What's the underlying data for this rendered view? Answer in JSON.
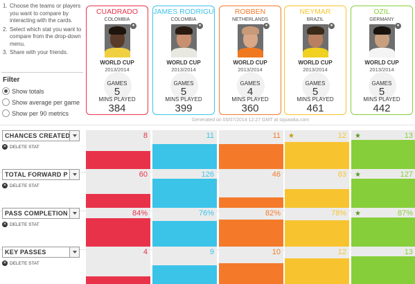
{
  "instructions": [
    {
      "num": "1.",
      "text": "Choose the teams or players you want to compare by interacting with the cards."
    },
    {
      "num": "2.",
      "text": "Select which stat you want to compare from the drop-down menu."
    },
    {
      "num": "3.",
      "text": "Share with your friends."
    }
  ],
  "filter": {
    "title": "Filter",
    "options": [
      {
        "label": "Show totals",
        "checked": true
      },
      {
        "label": "Show average per game",
        "checked": false
      },
      {
        "label": "Show per 90 metrics",
        "checked": false
      }
    ]
  },
  "players": [
    {
      "name": "CUADRADO",
      "country": "COLOMBIA",
      "tournament": "WORLD CUP",
      "season": "2013/2014",
      "games_label": "GAMES",
      "games": "5",
      "mins_label": "MINS PLAYED",
      "mins": "384",
      "color": "#e8324a",
      "skin": "#5a3a28",
      "hair": "#1e140e",
      "shirt": "#f0d040"
    },
    {
      "name": "JAMES RODRIGU",
      "country": "COLOMBIA",
      "tournament": "WORLD CUP",
      "season": "2013/2014",
      "games_label": "GAMES",
      "games": "5",
      "mins_label": "MINS PLAYED",
      "mins": "399",
      "color": "#3cc3e8",
      "skin": "#c89070",
      "hair": "#2a1a12",
      "shirt": "#e8e8e0"
    },
    {
      "name": "ROBBEN",
      "country": "NETHERLANDS",
      "tournament": "WORLD CUP",
      "season": "2013/2014",
      "games_label": "GAMES",
      "games": "4",
      "mins_label": "MINS PLAYED",
      "mins": "360",
      "color": "#f47a2a",
      "skin": "#d8a888",
      "hair": "#c89a78",
      "shirt": "#f07820"
    },
    {
      "name": "NEYMAR",
      "country": "BRAZIL",
      "tournament": "WORLD CUP",
      "season": "2013/2014",
      "games_label": "GAMES",
      "games": "5",
      "mins_label": "MINS PLAYED",
      "mins": "461",
      "color": "#f7c430",
      "skin": "#b88060",
      "hair": "#3a2a1a",
      "shirt": "#f0d020"
    },
    {
      "name": "OZIL",
      "country": "GERMANY",
      "tournament": "WORLD CUP",
      "season": "2013/2014",
      "games_label": "GAMES",
      "games": "5",
      "mins_label": "MINS PLAYED",
      "mins": "442",
      "color": "#86cf3a",
      "skin": "#c8a080",
      "hair": "#1a120c",
      "shirt": "#f4f4f4"
    }
  ],
  "generated": "Generated on 05/07/2014 12:27 GMT at squawka.com",
  "delete_label": "DELETE STAT",
  "stats": [
    {
      "label": "CHANCES CREATED",
      "values": [
        "8",
        "11",
        "11",
        "12",
        "13"
      ],
      "levels": [
        0.62,
        0.85,
        0.85,
        0.92,
        1.0
      ],
      "stars": [
        false,
        false,
        false,
        true,
        true
      ]
    },
    {
      "label": "TOTAL FORWARD P",
      "values": [
        "60",
        "126",
        "46",
        "83",
        "127"
      ],
      "levels": [
        0.47,
        0.99,
        0.36,
        0.65,
        1.0
      ],
      "stars": [
        false,
        false,
        false,
        false,
        true
      ]
    },
    {
      "label": "PASS COMPLETION",
      "values": [
        "84%",
        "76%",
        "82%",
        "78%",
        "87%"
      ],
      "levels": [
        0.97,
        0.87,
        0.94,
        0.9,
        1.0
      ],
      "stars": [
        false,
        false,
        false,
        false,
        true
      ]
    },
    {
      "label": "KEY PASSES",
      "values": [
        "4",
        "9",
        "10",
        "12",
        "13"
      ],
      "levels": [
        0.31,
        0.69,
        0.77,
        0.92,
        1.0
      ],
      "stars": [
        false,
        false,
        false,
        false,
        false
      ]
    }
  ],
  "icons": {
    "star": "star-icon",
    "delete": "close-circle-icon",
    "dropdown": "chevron-down-icon",
    "club": "club-badge-icon"
  }
}
